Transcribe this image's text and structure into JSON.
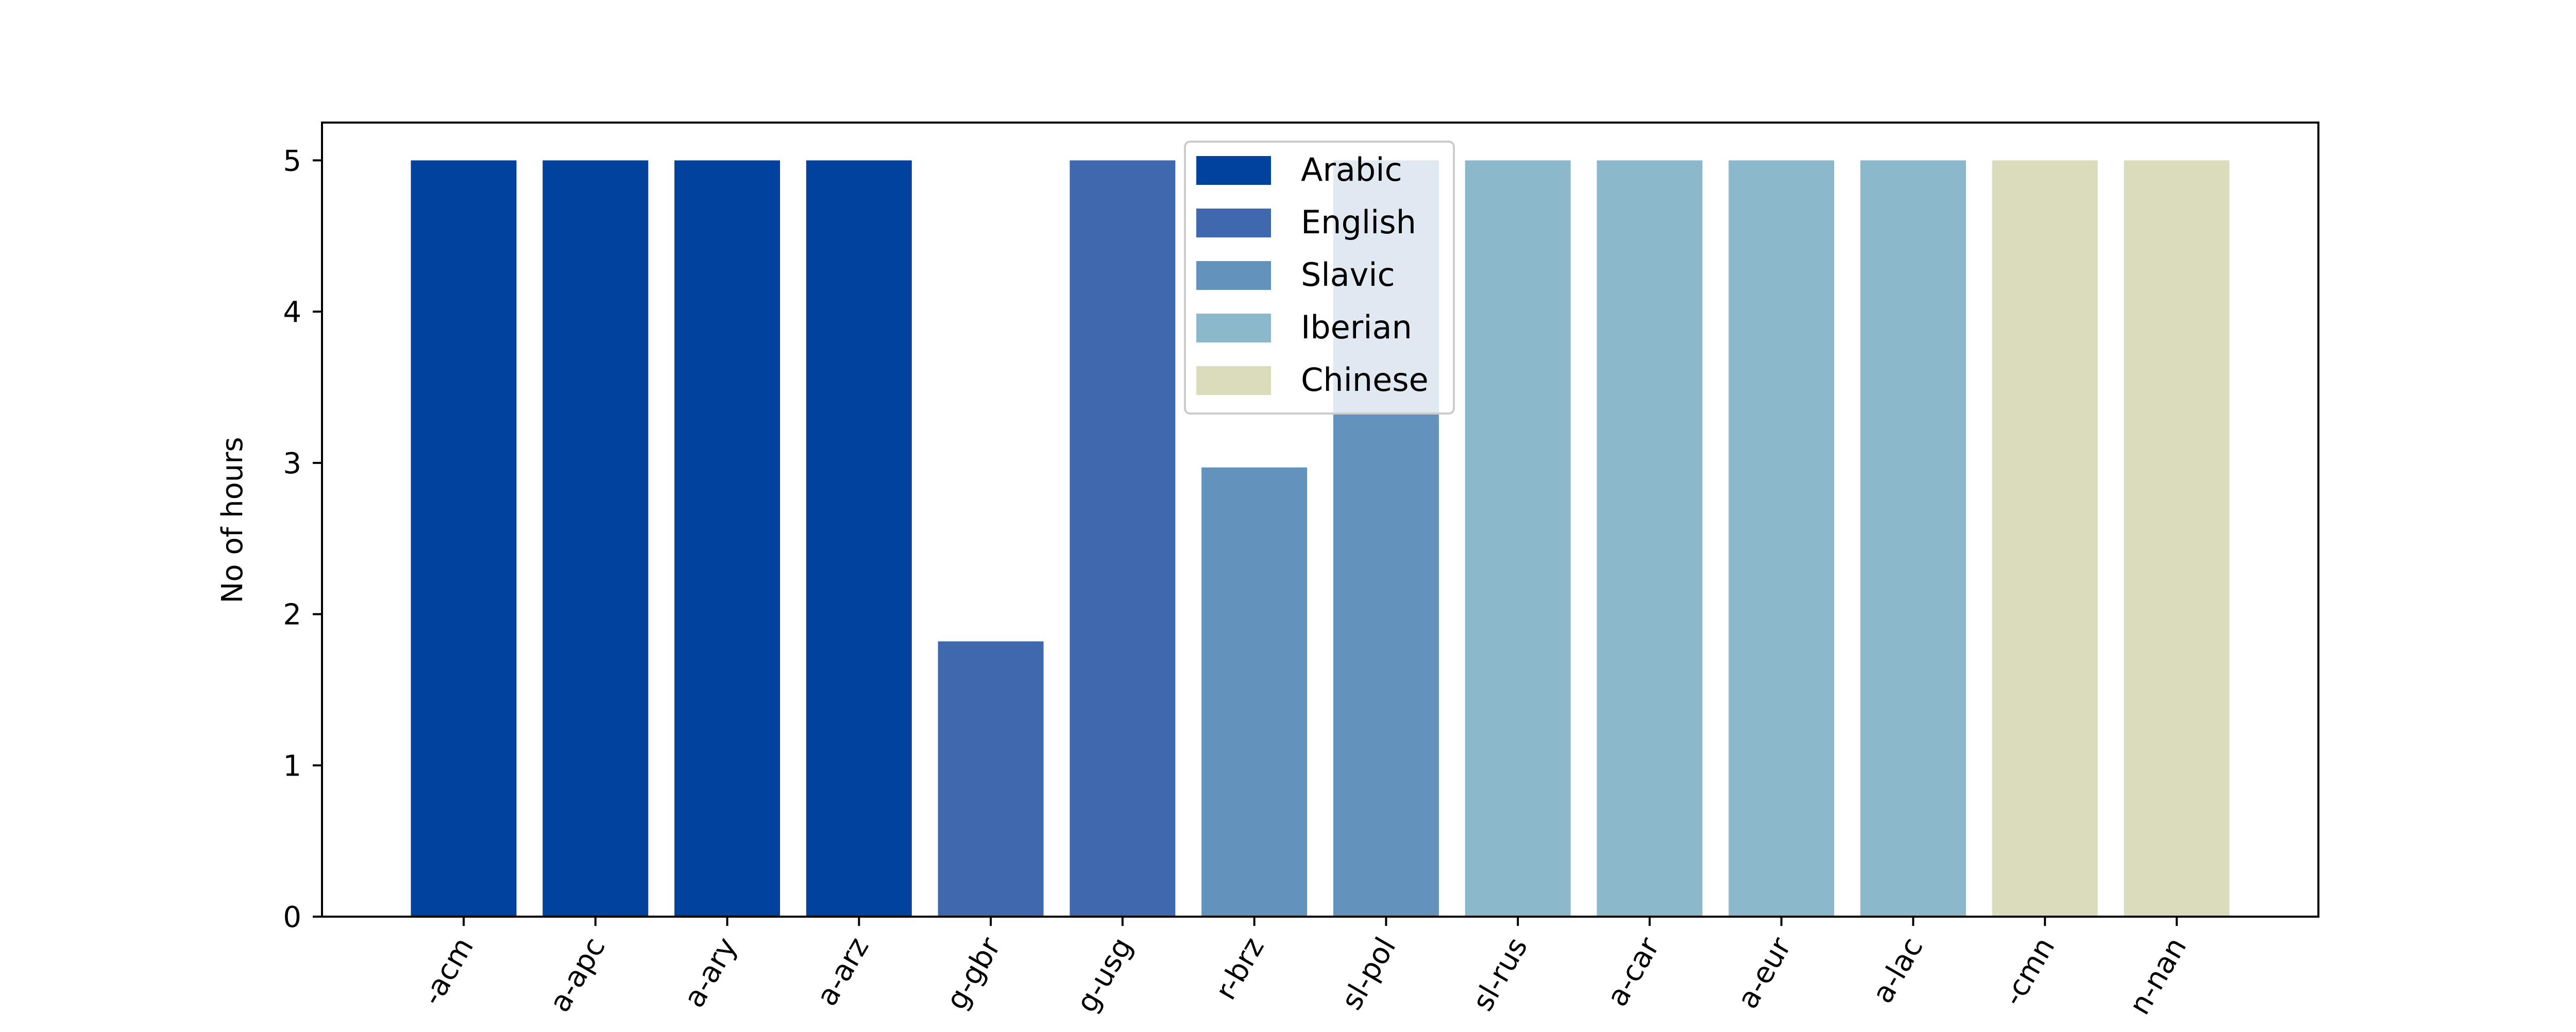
{
  "chart_data": {
    "type": "bar",
    "title": "",
    "xlabel": "",
    "ylabel": "No of hours",
    "ylim": [
      0,
      5.25
    ],
    "yticks": [
      "0",
      "1",
      "2",
      "3",
      "4",
      "5"
    ],
    "categories": [
      "-acm",
      "a-apc",
      "a-ary",
      "a-arz",
      "g-gbr",
      "g-usg",
      "r-brz",
      "sl-pol",
      "sl-rus",
      "a-car",
      "a-eur",
      "a-lac",
      "-cmn",
      "n-nan"
    ],
    "values": [
      5.0,
      5.0,
      5.0,
      5.0,
      1.82,
      5.0,
      2.97,
      5.0,
      5.0,
      5.0,
      5.0,
      5.0,
      5.0,
      5.0
    ],
    "groups": [
      "Arabic",
      "Arabic",
      "Arabic",
      "Arabic",
      "English",
      "English",
      "Slavic",
      "Slavic",
      "Iberian",
      "Iberian",
      "Iberian",
      "Iberian",
      "Chinese",
      "Chinese"
    ],
    "legend": {
      "placement": "top-center",
      "entries": [
        {
          "name": "Arabic",
          "color": "#00429d"
        },
        {
          "name": "English",
          "color": "#4068ae"
        },
        {
          "name": "Slavic",
          "color": "#6392bd"
        },
        {
          "name": "Iberian",
          "color": "#8bb9cb"
        },
        {
          "name": "Chinese",
          "color": "#dadcbc"
        }
      ]
    },
    "grid": false
  }
}
